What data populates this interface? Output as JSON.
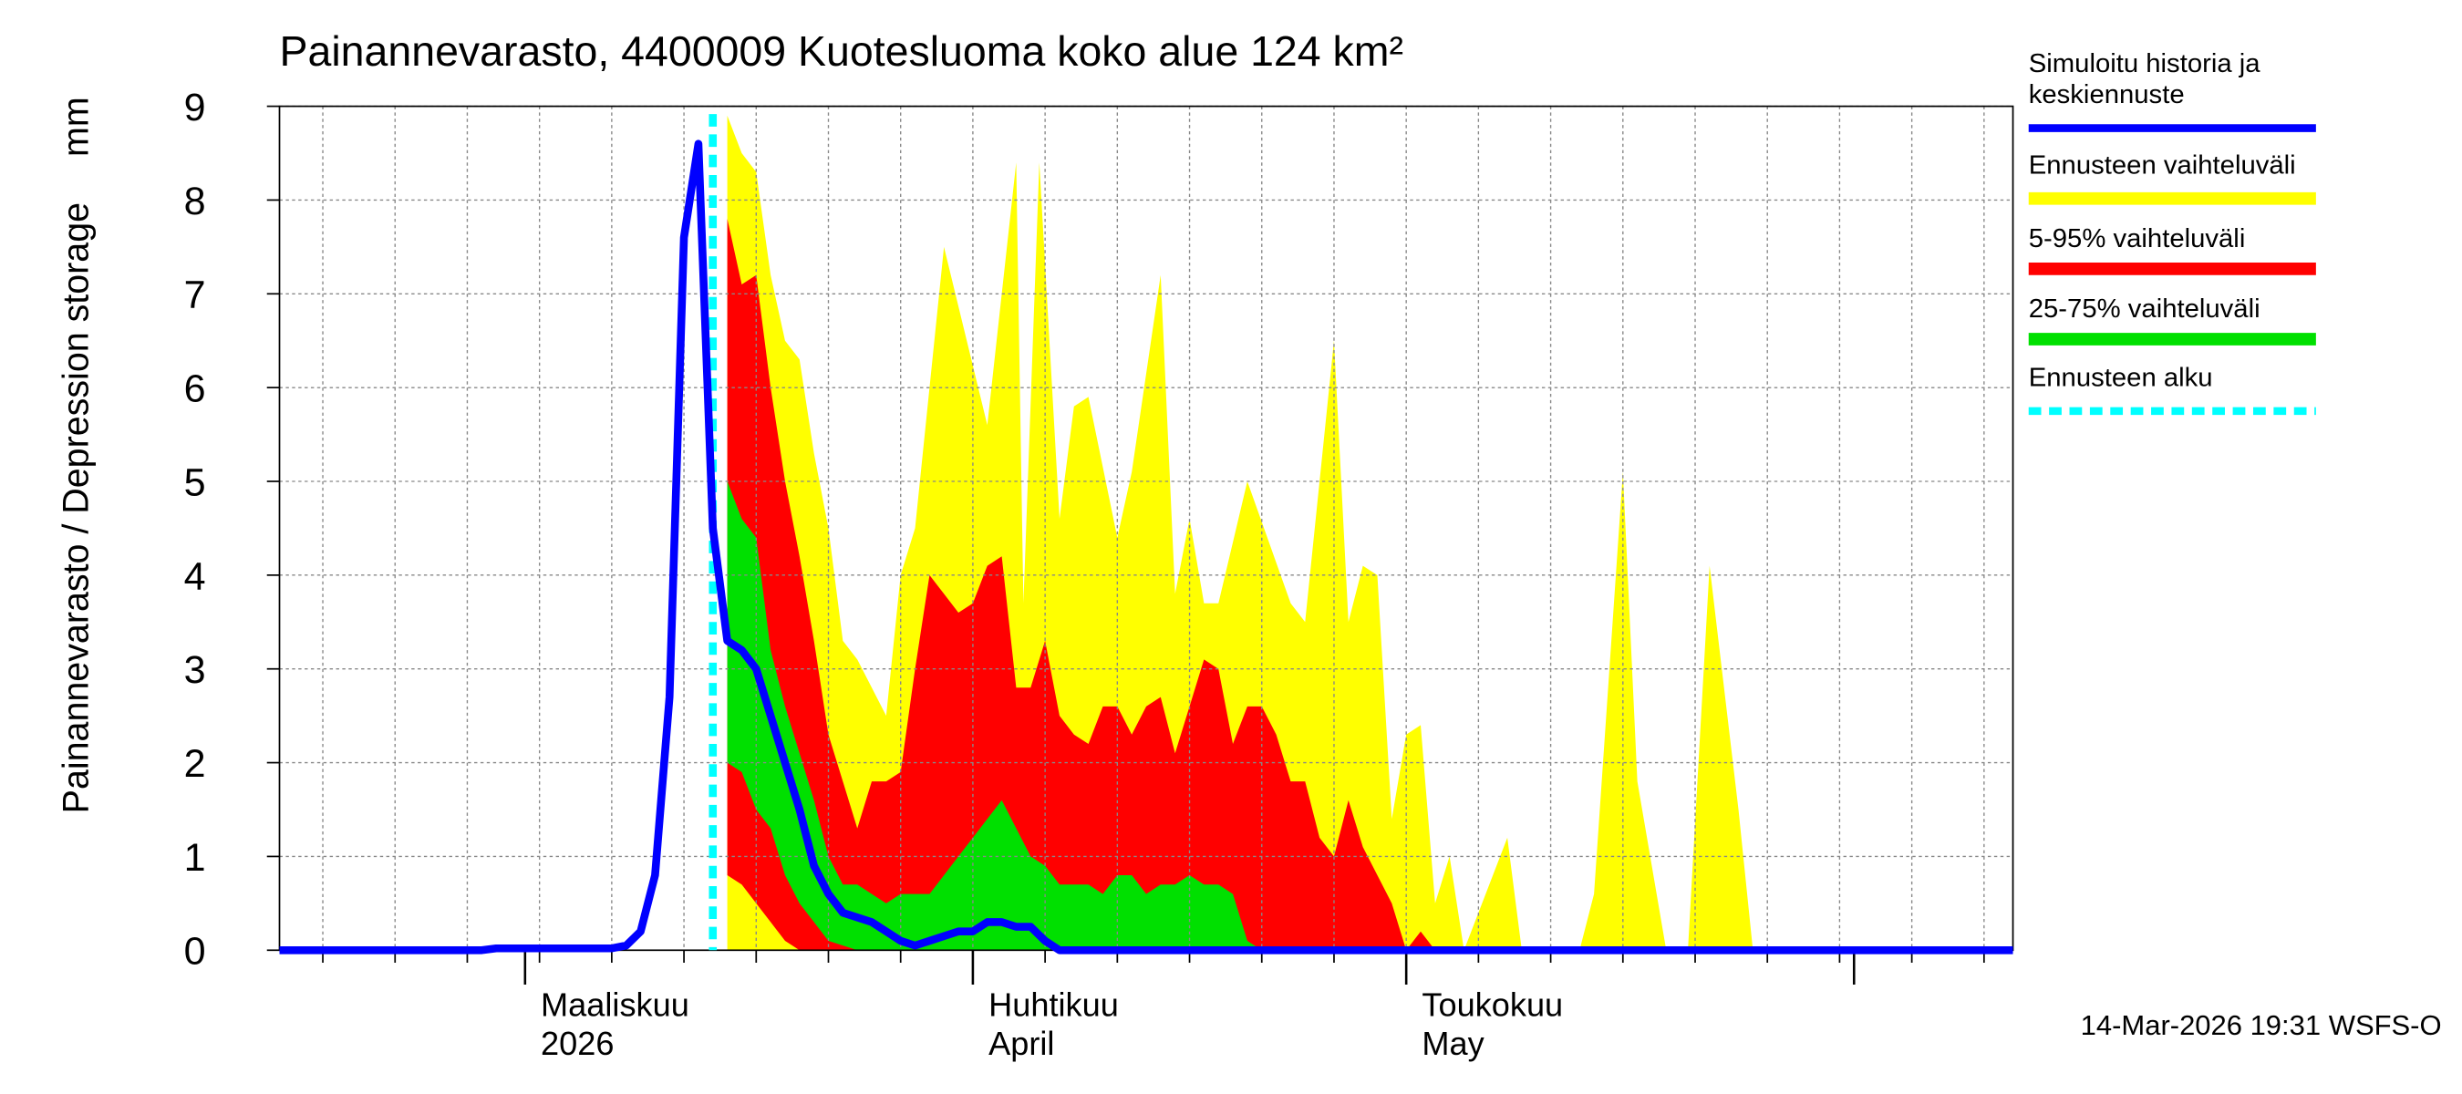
{
  "chart_data": {
    "type": "band_forecast",
    "title": "Painannevarasto, 4400009 Kuotesluoma koko alue 124 km²",
    "y_label": "Painannevarasto / Depression storage",
    "y_unit": "mm",
    "ylim": [
      0,
      9
    ],
    "yticks": [
      0,
      1,
      2,
      3,
      4,
      5,
      6,
      7,
      8,
      9
    ],
    "xlim": [
      0,
      120
    ],
    "xticks": [
      {
        "value": 17,
        "label": "Maaliskuu",
        "sublabel": "2026"
      },
      {
        "value": 48,
        "label": "Huhtikuu",
        "sublabel": "April"
      },
      {
        "value": 78,
        "label": "Toukokuu",
        "sublabel": "May"
      }
    ],
    "month_ticks": [
      17,
      48,
      78,
      109
    ],
    "xgrid": [
      3,
      8,
      13,
      18,
      23,
      28,
      33,
      38,
      43,
      48,
      53,
      58,
      63,
      68,
      73,
      78,
      83,
      88,
      93,
      98,
      103,
      108,
      113,
      118
    ],
    "grid": true,
    "bands": [
      {
        "name": "Ennusteen vaihteluväli",
        "color": "#ffff00",
        "x": [
          31,
          32,
          33,
          34,
          35,
          36,
          37,
          38,
          39,
          40,
          41,
          42,
          43,
          44,
          46,
          49,
          51,
          51.5,
          52.6,
          54,
          55,
          56,
          58,
          59,
          61,
          62,
          63,
          64,
          65,
          67,
          70,
          71,
          73,
          74,
          75,
          76,
          77,
          78,
          79,
          80,
          81,
          82,
          85,
          86,
          90,
          91,
          93,
          94,
          96,
          97.5,
          99,
          101,
          102
        ],
        "upper": [
          8.9,
          8.5,
          8.3,
          7.2,
          6.5,
          6.3,
          5.3,
          4.5,
          3.3,
          3.1,
          2.8,
          2.5,
          4.0,
          4.5,
          7.5,
          5.6,
          8.4,
          3.7,
          8.4,
          4.6,
          5.8,
          5.9,
          4.4,
          5.1,
          7.2,
          3.8,
          4.6,
          3.7,
          3.7,
          5.0,
          3.7,
          3.5,
          6.5,
          3.5,
          4.1,
          4.0,
          1.4,
          2.3,
          2.4,
          0.5,
          1.0,
          0,
          1.2,
          0,
          0,
          0.6,
          5.1,
          1.8,
          0,
          0,
          4.1,
          1.5,
          0
        ]
      },
      {
        "name": "5-95% vaihteluväli",
        "color": "#ff0000",
        "x": [
          31,
          32,
          33,
          34,
          35,
          36,
          37,
          38,
          39,
          40,
          41,
          42,
          43,
          44,
          45,
          46,
          47,
          48,
          49,
          50,
          51,
          52,
          53,
          54,
          55,
          56,
          57,
          58,
          59,
          60,
          61,
          62,
          63,
          64,
          65,
          66,
          67,
          68,
          69,
          70,
          71,
          72,
          73,
          74,
          75,
          76,
          77,
          78,
          79,
          80
        ],
        "upper": [
          7.8,
          7.1,
          7.2,
          6.0,
          5.0,
          4.2,
          3.3,
          2.3,
          1.8,
          1.3,
          1.8,
          1.8,
          1.9,
          3.0,
          4.0,
          3.8,
          3.6,
          3.7,
          4.1,
          4.2,
          2.8,
          2.8,
          3.3,
          2.5,
          2.3,
          2.2,
          2.6,
          2.6,
          2.3,
          2.6,
          2.7,
          2.1,
          2.6,
          3.1,
          3.0,
          2.2,
          2.6,
          2.6,
          2.3,
          1.8,
          1.8,
          1.2,
          1.0,
          1.6,
          1.1,
          0.8,
          0.5,
          0,
          0.2,
          0
        ],
        "lower": [
          0.8,
          0.7,
          0.5,
          0.3,
          0.1,
          0,
          0,
          0,
          0,
          0,
          0,
          0,
          0,
          0,
          0,
          0,
          0,
          0,
          0,
          0,
          0,
          0,
          0,
          0,
          0,
          0,
          0,
          0,
          0,
          0,
          0,
          0,
          0,
          0,
          0,
          0,
          0,
          0,
          0,
          0,
          0,
          0,
          0,
          0,
          0,
          0,
          0,
          0,
          0,
          0
        ]
      },
      {
        "name": "25-75% vaihteluväli",
        "color": "#00e000",
        "x": [
          31,
          32,
          33,
          34,
          35,
          36,
          37,
          38,
          39,
          40,
          41,
          42,
          43,
          44,
          45,
          46,
          47,
          48,
          49,
          50,
          51,
          52,
          53,
          54,
          55,
          56,
          57,
          58,
          59,
          60,
          61,
          62,
          63,
          64,
          65,
          66,
          67,
          68,
          69
        ],
        "upper": [
          5.0,
          4.6,
          4.4,
          3.2,
          2.6,
          2.1,
          1.6,
          1.0,
          0.7,
          0.7,
          0.6,
          0.5,
          0.6,
          0.6,
          0.6,
          0.8,
          1.0,
          1.2,
          1.4,
          1.6,
          1.3,
          1.0,
          0.9,
          0.7,
          0.7,
          0.7,
          0.6,
          0.8,
          0.8,
          0.6,
          0.7,
          0.7,
          0.8,
          0.7,
          0.7,
          0.6,
          0.1,
          0,
          0
        ],
        "lower": [
          2.0,
          1.9,
          1.5,
          1.3,
          0.8,
          0.5,
          0.3,
          0.1,
          0.05,
          0,
          0,
          0,
          0,
          0,
          0,
          0,
          0,
          0,
          0,
          0,
          0,
          0,
          0,
          0,
          0,
          0,
          0,
          0,
          0,
          0,
          0,
          0,
          0,
          0,
          0,
          0,
          0,
          0,
          0
        ]
      }
    ],
    "series": [
      {
        "name": "Simuloitu historia ja keskiennuste",
        "color": "#0000ff",
        "x": [
          0,
          14,
          15,
          23,
          24,
          25,
          26,
          27,
          28,
          29,
          30,
          31,
          32,
          33,
          34,
          35,
          36,
          37,
          38,
          39,
          40,
          41,
          42,
          43,
          44,
          45,
          46,
          47,
          48,
          49,
          50,
          51,
          52,
          53,
          54,
          120
        ],
        "values": [
          0,
          0,
          0.02,
          0.02,
          0.05,
          0.2,
          0.8,
          2.7,
          7.6,
          8.6,
          4.5,
          3.3,
          3.2,
          3.0,
          2.5,
          2.0,
          1.5,
          0.9,
          0.6,
          0.4,
          0.35,
          0.3,
          0.2,
          0.1,
          0.05,
          0.1,
          0.15,
          0.2,
          0.2,
          0.3,
          0.3,
          0.25,
          0.25,
          0.1,
          0,
          0
        ]
      }
    ],
    "forecast_start": {
      "name": "Ennusteen alku",
      "x": 30,
      "color": "#00ffff"
    },
    "footer": "14-Mar-2026 19:31 WSFS-O"
  }
}
